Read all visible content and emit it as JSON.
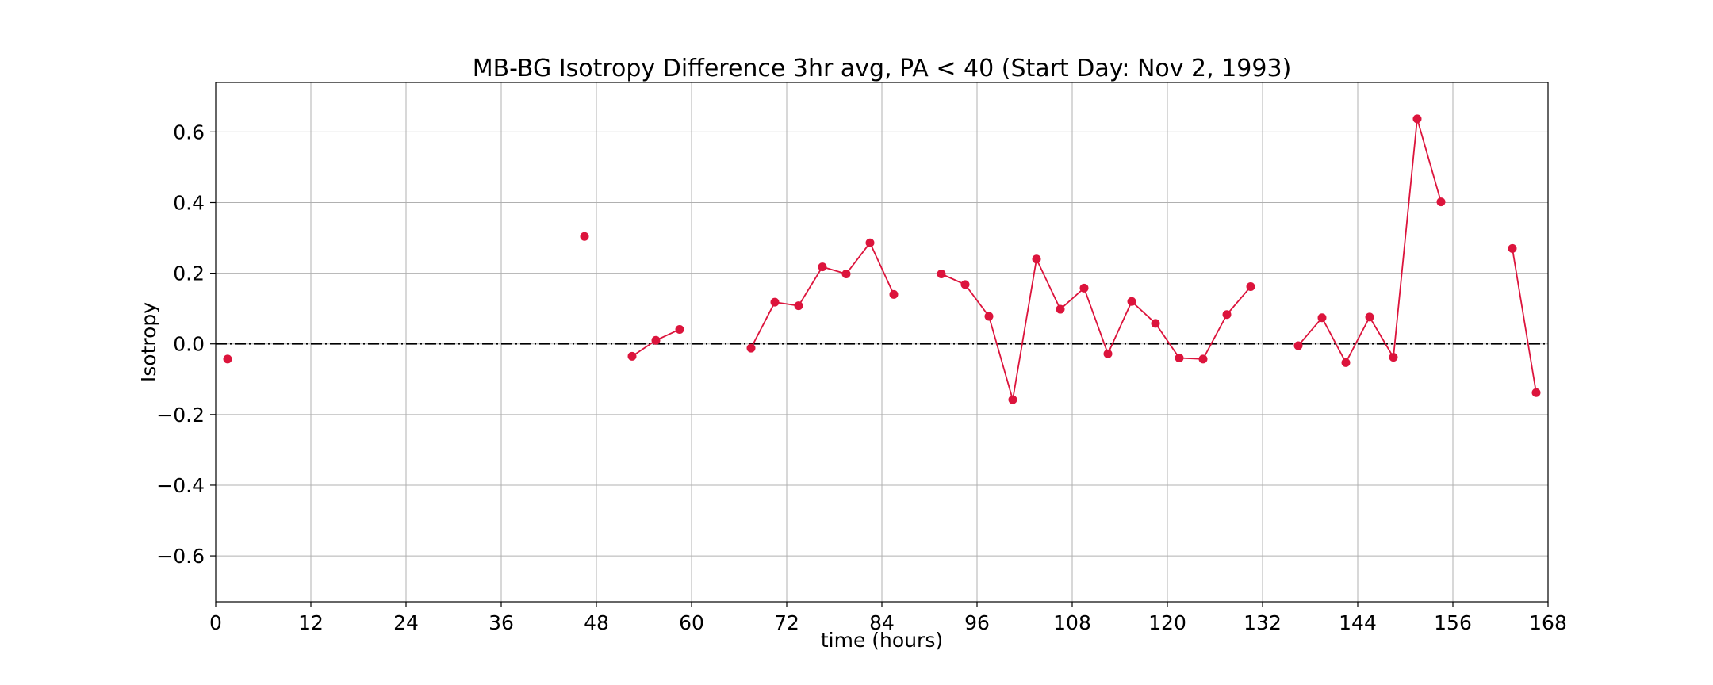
{
  "chart_data": {
    "type": "line",
    "title": "MB-BG Isotropy Difference 3hr avg, PA < 40 (Start Day: Nov 2, 1993)",
    "xlabel": "time (hours)",
    "ylabel": "Isotropy",
    "xlim": [
      0,
      168
    ],
    "ylim": [
      -0.73,
      0.74
    ],
    "x_ticks": [
      0,
      12,
      24,
      36,
      48,
      60,
      72,
      84,
      96,
      108,
      120,
      132,
      144,
      156,
      168
    ],
    "x_tick_labels": [
      "0",
      "12",
      "24",
      "36",
      "48",
      "60",
      "72",
      "84",
      "96",
      "108",
      "120",
      "132",
      "144",
      "156",
      "168"
    ],
    "y_ticks": [
      -0.6,
      -0.4,
      -0.2,
      0.0,
      0.2,
      0.4,
      0.6
    ],
    "y_tick_labels": [
      "−0.6",
      "−0.4",
      "−0.2",
      "0.0",
      "0.2",
      "0.4",
      "0.6"
    ],
    "grid": true,
    "reference_line": {
      "y": 0.0,
      "style": "dash-dot",
      "color": "#000000"
    },
    "series": [
      {
        "color": "#dc143c",
        "marker": "circle",
        "segments": [
          [
            [
              1.5,
              -0.043
            ]
          ],
          [
            [
              46.5,
              0.304
            ]
          ],
          [
            [
              52.5,
              -0.035
            ],
            [
              55.5,
              0.01
            ],
            [
              58.5,
              0.041
            ]
          ],
          [
            [
              67.5,
              -0.012
            ],
            [
              70.5,
              0.118
            ],
            [
              73.5,
              0.108
            ],
            [
              76.5,
              0.218
            ],
            [
              79.5,
              0.198
            ],
            [
              82.5,
              0.286
            ],
            [
              85.5,
              0.14
            ]
          ],
          [
            [
              91.5,
              0.198
            ],
            [
              94.5,
              0.168
            ],
            [
              97.5,
              0.078
            ],
            [
              100.5,
              -0.158
            ],
            [
              103.5,
              0.24
            ],
            [
              106.5,
              0.098
            ],
            [
              109.5,
              0.158
            ],
            [
              112.5,
              -0.028
            ],
            [
              115.5,
              0.12
            ],
            [
              118.5,
              0.058
            ],
            [
              121.5,
              -0.04
            ],
            [
              124.5,
              -0.043
            ],
            [
              127.5,
              0.083
            ],
            [
              130.5,
              0.162
            ]
          ],
          [
            [
              136.5,
              -0.005
            ],
            [
              139.5,
              0.074
            ],
            [
              142.5,
              -0.053
            ],
            [
              145.5,
              0.076
            ],
            [
              148.5,
              -0.038
            ],
            [
              151.5,
              0.637
            ],
            [
              154.5,
              0.402
            ]
          ],
          [
            [
              163.5,
              0.27
            ],
            [
              166.5,
              -0.138
            ]
          ]
        ]
      }
    ]
  }
}
